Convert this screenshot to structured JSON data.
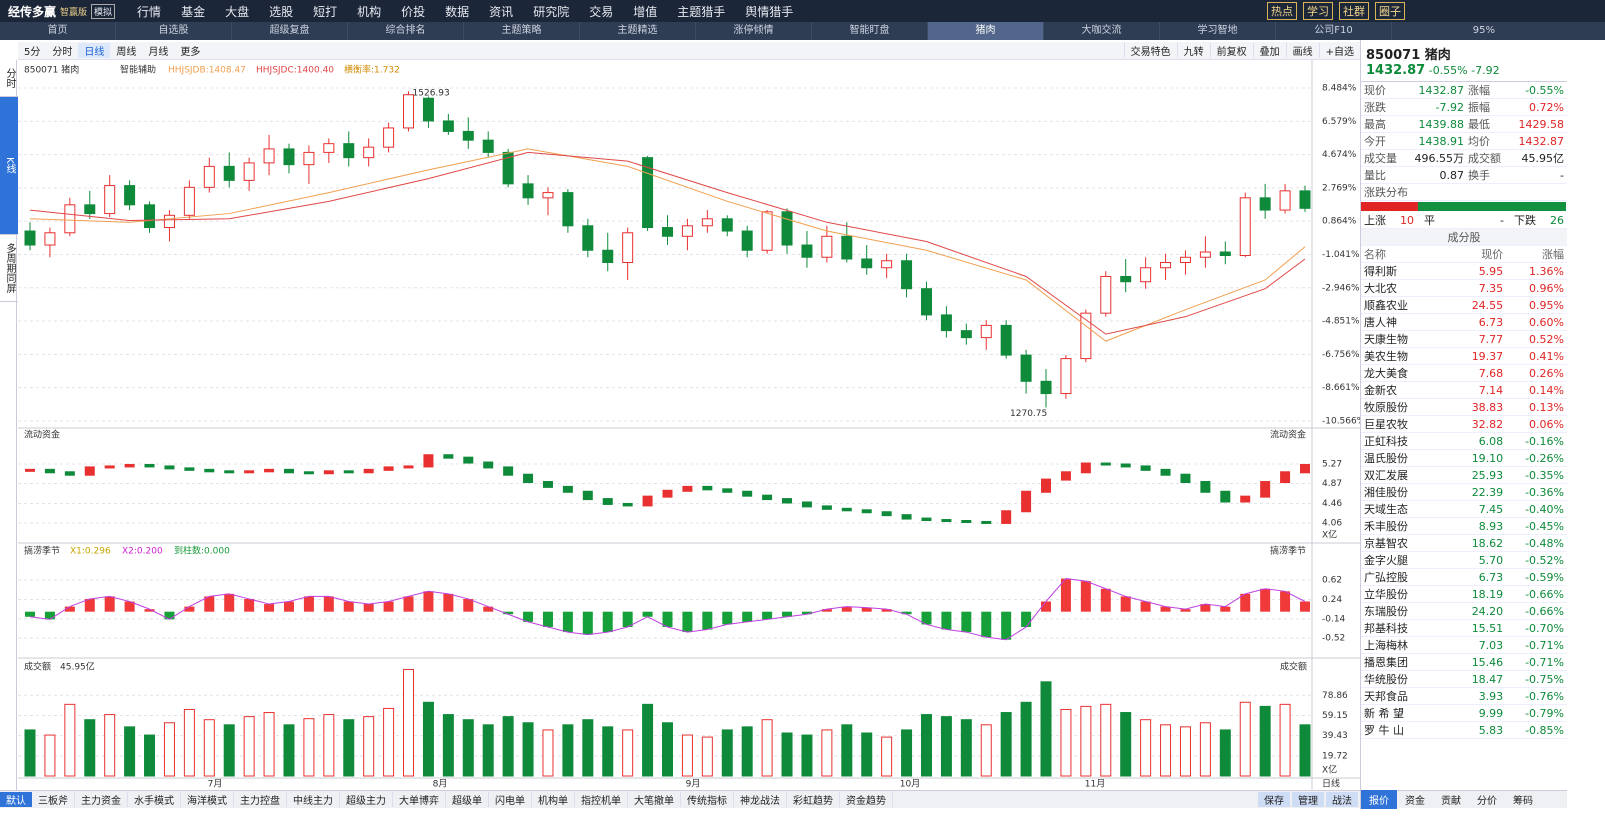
{
  "top_menu": {
    "logo": "经传多赢",
    "edition": "智赢版",
    "badge": "模拟",
    "items": [
      "行情",
      "基金",
      "大盘",
      "选股",
      "短打",
      "机构",
      "价投",
      "数据",
      "资讯",
      "研究院",
      "交易",
      "增值",
      "主题猎手",
      "舆情猎手"
    ],
    "buttons": [
      "热点",
      "学习",
      "社群",
      "圈子"
    ]
  },
  "tabs": {
    "items": [
      "首页",
      "自选股",
      "超级复盘",
      "综合排名",
      "主题策略",
      "主题精选",
      "涨停倾情",
      "智能盯盘",
      "猪肉",
      "大咖交流",
      "学习智地",
      "公司F10"
    ],
    "active": "猪肉",
    "zoom": "95%"
  },
  "toolbar": {
    "left": [
      "5分",
      "分时",
      "日线",
      "周线",
      "月线",
      "更多"
    ],
    "active": "日线",
    "right": [
      "交易特色",
      "九转",
      "前复权",
      "叠加",
      "画线",
      "+自选"
    ]
  },
  "side_tabs": [
    "分时",
    "K线",
    "多周期同屏"
  ],
  "chart": {
    "header": {
      "code": "850071 猪肉",
      "assist": "智能辅助",
      "ind1": "HHJSJDB:1408.47",
      "ind2": "HHJSJDC:1400.40",
      "ind3": "横衡率:1.732"
    },
    "price": {
      "ylim": [
        -10.8,
        9.63
      ],
      "yticks": [
        {
          "value": 8.484,
          "label": "8.484%"
        },
        {
          "value": 6.579,
          "label": "6.579%"
        },
        {
          "value": 4.674,
          "label": "4.674%"
        },
        {
          "value": 2.769,
          "label": "2.769%"
        },
        {
          "value": 0.864,
          "label": "0.864%"
        },
        {
          "value": -1.041,
          "label": "-1.041%"
        },
        {
          "value": -2.946,
          "label": "-2.946%"
        },
        {
          "value": -4.851,
          "label": "-4.851%"
        },
        {
          "value": -6.756,
          "label": "-6.756%"
        },
        {
          "value": -8.661,
          "label": "-8.661%"
        },
        {
          "value": -10.566,
          "label": "-10.566%"
        }
      ],
      "candles": [
        [
          0.3,
          0.8,
          -0.8,
          -0.5
        ],
        [
          -0.5,
          0.5,
          -1.2,
          0.2
        ],
        [
          0.2,
          2.2,
          0,
          1.8
        ],
        [
          1.8,
          2.6,
          1.0,
          1.3
        ],
        [
          1.3,
          3.5,
          1.1,
          2.9
        ],
        [
          2.9,
          3.2,
          1.5,
          1.8
        ],
        [
          1.8,
          2.0,
          0.2,
          0.5
        ],
        [
          0.5,
          1.5,
          -0.3,
          1.2
        ],
        [
          1.2,
          3.2,
          1.0,
          2.8
        ],
        [
          2.8,
          4.5,
          2.5,
          4.0
        ],
        [
          4.0,
          4.8,
          2.8,
          3.2
        ],
        [
          3.2,
          4.5,
          2.6,
          4.2
        ],
        [
          4.2,
          5.8,
          3.5,
          5.0
        ],
        [
          5.0,
          5.3,
          3.6,
          4.1
        ],
        [
          4.1,
          5.2,
          3.0,
          4.8
        ],
        [
          4.8,
          5.6,
          4.2,
          5.3
        ],
        [
          5.3,
          6.0,
          4.0,
          4.5
        ],
        [
          4.5,
          5.6,
          4.0,
          5.1
        ],
        [
          5.1,
          6.5,
          4.8,
          6.2
        ],
        [
          6.2,
          8.3,
          6.0,
          8.1
        ],
        [
          7.9,
          8.0,
          6.2,
          6.6
        ],
        [
          6.6,
          7.0,
          5.8,
          6.0
        ],
        [
          6.0,
          6.8,
          5.0,
          5.5
        ],
        [
          5.5,
          6.0,
          4.5,
          4.8
        ],
        [
          4.8,
          5.0,
          2.8,
          3.0
        ],
        [
          3.0,
          3.5,
          1.8,
          2.2
        ],
        [
          2.2,
          2.8,
          1.2,
          2.5
        ],
        [
          2.5,
          2.7,
          0.2,
          0.6
        ],
        [
          0.6,
          1.0,
          -1.2,
          -0.8
        ],
        [
          -0.8,
          0.2,
          -2.0,
          -1.5
        ],
        [
          -1.5,
          0.5,
          -2.5,
          0.2
        ],
        [
          4.5,
          4.6,
          0.3,
          0.5
        ],
        [
          0.5,
          1.2,
          -0.5,
          0.0
        ],
        [
          0.0,
          1.0,
          -0.8,
          0.6
        ],
        [
          0.6,
          1.5,
          0.2,
          1.0
        ],
        [
          1.0,
          1.2,
          0.0,
          0.3
        ],
        [
          0.3,
          0.6,
          -1.2,
          -0.8
        ],
        [
          -0.8,
          1.5,
          -1.0,
          1.4
        ],
        [
          1.4,
          1.6,
          -1.0,
          -0.5
        ],
        [
          -0.5,
          0.3,
          -1.8,
          -1.2
        ],
        [
          -1.2,
          0.6,
          -1.5,
          0.0
        ],
        [
          0.0,
          0.8,
          -1.5,
          -1.3
        ],
        [
          -1.3,
          -0.5,
          -2.2,
          -1.8
        ],
        [
          -1.8,
          -1.0,
          -2.4,
          -1.4
        ],
        [
          -1.4,
          -1.0,
          -3.5,
          -3.0
        ],
        [
          -3.0,
          -2.6,
          -4.8,
          -4.5
        ],
        [
          -4.5,
          -4.0,
          -5.8,
          -5.4
        ],
        [
          -5.4,
          -5.0,
          -6.2,
          -5.8
        ],
        [
          -5.8,
          -4.8,
          -6.5,
          -5.1
        ],
        [
          -5.1,
          -4.8,
          -7.0,
          -6.8
        ],
        [
          -6.8,
          -6.5,
          -9.0,
          -8.3
        ],
        [
          -8.3,
          -7.6,
          -9.8,
          -9.0
        ],
        [
          -9.0,
          -6.8,
          -9.3,
          -7.0
        ],
        [
          -7.0,
          -4.2,
          -7.2,
          -4.4
        ],
        [
          -4.4,
          -2.0,
          -4.6,
          -2.3
        ],
        [
          -2.3,
          -1.3,
          -3.2,
          -2.6
        ],
        [
          -2.6,
          -1.2,
          -3.0,
          -1.8
        ],
        [
          -1.8,
          -1.0,
          -2.5,
          -1.5
        ],
        [
          -1.5,
          -0.8,
          -2.2,
          -1.2
        ],
        [
          -1.2,
          0,
          -1.8,
          -0.9
        ],
        [
          -0.9,
          -0.3,
          -1.6,
          -1.1
        ],
        [
          -1.1,
          2.5,
          -1.2,
          2.2
        ],
        [
          2.2,
          3.0,
          1.0,
          1.5
        ],
        [
          1.5,
          3.0,
          1.3,
          2.6
        ],
        [
          2.6,
          2.9,
          1.4,
          1.6
        ]
      ],
      "ma_x": [
        0,
        5,
        10,
        15,
        20,
        25,
        30,
        35,
        40,
        45,
        50,
        54,
        58,
        62,
        64
      ],
      "ma": [
        {
          "color": "#f0a050",
          "values": [
            1.0,
            0.8,
            1.3,
            2.5,
            3.8,
            5.0,
            4.0,
            2.0,
            0.3,
            -0.8,
            -2.5,
            -6.0,
            -4.2,
            -2.5,
            -0.6
          ]
        },
        {
          "color": "#e04848",
          "values": [
            1.5,
            0.9,
            1.0,
            2.0,
            3.3,
            4.8,
            4.3,
            2.5,
            0.8,
            -0.3,
            -2.3,
            -5.6,
            -4.6,
            -3.0,
            -1.3
          ]
        }
      ],
      "high_label": "1526.93",
      "low_label": "1270.75"
    },
    "flow": {
      "title": "流动资金",
      "unit": "X亿",
      "ylim": [
        3.71,
        5.66
      ],
      "yticks": [
        5.27,
        4.87,
        4.46,
        4.06
      ],
      "values": [
        5.15,
        5.1,
        5.05,
        5.2,
        5.22,
        5.25,
        5.22,
        5.18,
        5.15,
        5.12,
        5.1,
        5.12,
        5.15,
        5.1,
        5.08,
        5.12,
        5.1,
        5.15,
        5.2,
        5.22,
        5.45,
        5.4,
        5.3,
        5.2,
        5.05,
        4.9,
        4.8,
        4.7,
        4.55,
        4.45,
        4.42,
        4.6,
        4.72,
        4.8,
        4.75,
        4.7,
        4.62,
        4.55,
        4.48,
        4.4,
        4.35,
        4.32,
        4.28,
        4.22,
        4.15,
        4.12,
        4.1,
        4.08,
        4.06,
        4.3,
        4.7,
        4.95,
        5.1,
        5.28,
        5.26,
        5.22,
        5.15,
        5.05,
        4.9,
        4.7,
        4.5,
        4.6,
        4.9,
        5.1,
        5.25
      ]
    },
    "osc": {
      "title": "搞涝季节",
      "x1": "X1:0.296",
      "x2": "X2:0.200",
      "x3": "到柱数:0.000",
      "ylim": [
        -0.85,
        1.25
      ],
      "yticks": [
        0.62,
        0.24,
        -0.14,
        -0.52
      ],
      "values": [
        -0.1,
        -0.15,
        0.1,
        0.25,
        0.3,
        0.2,
        0.05,
        -0.15,
        0.1,
        0.3,
        0.35,
        0.25,
        0.15,
        0.2,
        0.3,
        0.3,
        0.2,
        0.15,
        0.2,
        0.3,
        0.4,
        0.35,
        0.25,
        0.1,
        -0.05,
        -0.2,
        -0.3,
        -0.4,
        -0.45,
        -0.4,
        -0.3,
        -0.1,
        -0.3,
        -0.4,
        -0.35,
        -0.25,
        -0.2,
        -0.15,
        -0.1,
        -0.05,
        0.05,
        0.1,
        0.08,
        0.05,
        -0.05,
        -0.25,
        -0.35,
        -0.4,
        -0.5,
        -0.55,
        -0.3,
        0.2,
        0.65,
        0.6,
        0.45,
        0.3,
        0.2,
        0.1,
        0.05,
        0.15,
        0.1,
        0.35,
        0.45,
        0.4,
        0.2
      ]
    },
    "volume": {
      "title": "成交额",
      "total": "45.95亿",
      "unit": "X亿",
      "ylim": [
        0,
        105.5
      ],
      "yticks": [
        78.86,
        59.15,
        39.43,
        19.72
      ],
      "values": [
        45,
        40,
        70,
        55,
        60,
        48,
        40,
        52,
        65,
        55,
        50,
        58,
        62,
        50,
        56,
        60,
        55,
        58,
        66,
        104,
        72,
        60,
        55,
        50,
        58,
        52,
        45,
        50,
        55,
        48,
        45,
        70,
        52,
        40,
        38,
        45,
        48,
        55,
        42,
        40,
        45,
        50,
        42,
        38,
        45,
        60,
        58,
        55,
        50,
        62,
        72,
        92,
        65,
        68,
        70,
        62,
        55,
        50,
        48,
        52,
        45,
        72,
        68,
        70,
        50
      ]
    },
    "months": [
      "7月",
      "8月",
      "9月",
      "10月",
      "11月"
    ],
    "period": "日线"
  },
  "quote": {
    "title": "850071 猪肉",
    "price": "1432.87",
    "pct": "-0.55%",
    "chg": "-7.92",
    "rows": [
      [
        "现价",
        "1432.87",
        "涨幅",
        "-0.55%"
      ],
      [
        "涨跌",
        "-7.92",
        "振幅",
        "0.72%"
      ],
      [
        "最高",
        "1439.88",
        "最低",
        "1429.58"
      ],
      [
        "今开",
        "1438.91",
        "均价",
        "1432.87"
      ],
      [
        "成交量",
        "496.55万",
        "成交额",
        "45.95亿"
      ],
      [
        "量比",
        "0.87",
        "换手",
        "-"
      ]
    ],
    "dist_title": "涨跌分布",
    "rise_label": "上涨",
    "rise": 10,
    "flat_label": "平",
    "flat": "-",
    "fall_label": "下跌",
    "fall": 26
  },
  "constituents": {
    "title": "成分股",
    "header": [
      "名称",
      "现价",
      "涨幅"
    ],
    "rows": [
      [
        "得利斯",
        "5.95",
        "1.36%"
      ],
      [
        "大北农",
        "7.35",
        "0.96%"
      ],
      [
        "顺鑫农业",
        "24.55",
        "0.95%"
      ],
      [
        "唐人神",
        "6.73",
        "0.60%"
      ],
      [
        "天康生物",
        "7.77",
        "0.52%"
      ],
      [
        "美农生物",
        "19.37",
        "0.41%"
      ],
      [
        "龙大美食",
        "7.68",
        "0.26%"
      ],
      [
        "金新农",
        "7.14",
        "0.14%"
      ],
      [
        "牧原股份",
        "38.83",
        "0.13%"
      ],
      [
        "巨星农牧",
        "32.82",
        "0.06%"
      ],
      [
        "正虹科技",
        "6.08",
        "-0.16%"
      ],
      [
        "温氏股份",
        "19.10",
        "-0.26%"
      ],
      [
        "双汇发展",
        "25.93",
        "-0.35%"
      ],
      [
        "湘佳股份",
        "22.39",
        "-0.36%"
      ],
      [
        "天域生态",
        "7.45",
        "-0.40%"
      ],
      [
        "禾丰股份",
        "8.93",
        "-0.45%"
      ],
      [
        "京基智农",
        "18.62",
        "-0.48%"
      ],
      [
        "金字火腿",
        "5.70",
        "-0.52%"
      ],
      [
        "广弘控股",
        "6.73",
        "-0.59%"
      ],
      [
        "立华股份",
        "18.19",
        "-0.66%"
      ],
      [
        "东瑞股份",
        "24.20",
        "-0.66%"
      ],
      [
        "邦基科技",
        "15.51",
        "-0.70%"
      ],
      [
        "上海梅林",
        "7.03",
        "-0.71%"
      ],
      [
        "播恩集团",
        "15.46",
        "-0.71%"
      ],
      [
        "华统股份",
        "18.47",
        "-0.75%"
      ],
      [
        "天邦食品",
        "3.93",
        "-0.76%"
      ],
      [
        "新 希 望",
        "9.99",
        "-0.79%"
      ],
      [
        "罗 牛 山",
        "5.83",
        "-0.85%"
      ]
    ]
  },
  "bottom": {
    "tabs": [
      "默认",
      "三板斧",
      "主力资金",
      "水手模式",
      "海洋模式",
      "主力控盘",
      "中线主力",
      "超级主力",
      "大单博弈",
      "超级单",
      "闪电单",
      "机构单",
      "指控机单",
      "大笔撤单",
      "传统指标",
      "神龙战法",
      "彩虹趋势",
      "资金趋势"
    ],
    "right": [
      "保存",
      "管理",
      "战法"
    ],
    "panel_tabs": [
      "报价",
      "资金",
      "贡献",
      "分价",
      "筹码"
    ]
  }
}
